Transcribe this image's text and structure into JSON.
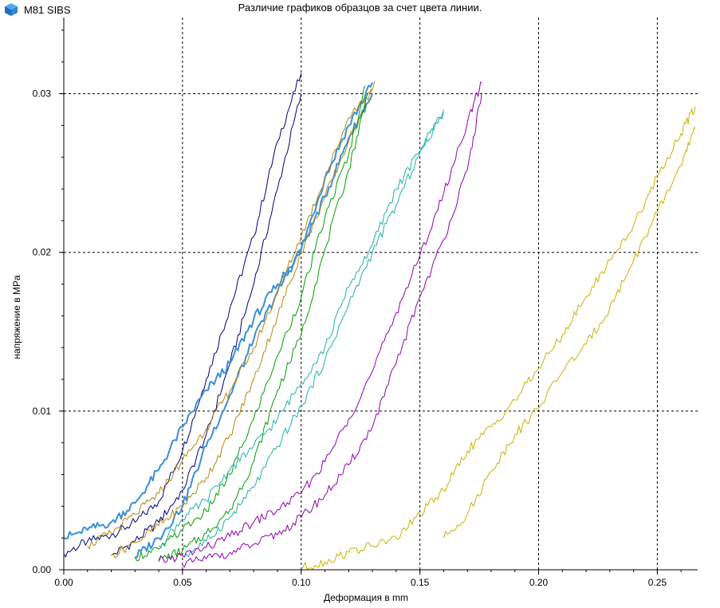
{
  "app": {
    "name": "M81 SIBS",
    "icon": "blue-cube-icon"
  },
  "chart_data": {
    "type": "line",
    "title": "Различие графиков образцов за счет цвета линии.",
    "xlabel": "Деформация в mm",
    "ylabel": "напряжение в MPa",
    "xlim": [
      0,
      0.267
    ],
    "ylim": [
      0,
      0.0348
    ],
    "x_ticks": [
      0,
      0.05,
      0.1,
      0.15,
      0.2,
      0.25
    ],
    "x_tick_labels": [
      "0.00",
      "0.05",
      "0.10",
      "0.15",
      "0.20",
      "0.25"
    ],
    "y_ticks": [
      0,
      0.01,
      0.02,
      0.03
    ],
    "y_tick_labels": [
      "0.00",
      "0.01",
      "0.02",
      "0.03"
    ],
    "grid": "dashed",
    "series": [
      {
        "color": "#000080",
        "width": 1,
        "x": [
          0,
          0.01,
          0.02,
          0.03,
          0.04,
          0.05,
          0.06,
          0.07,
          0.08,
          0.09,
          0.1
        ],
        "y": [
          0.001,
          0.0018,
          0.0022,
          0.003,
          0.0043,
          0.0075,
          0.012,
          0.0165,
          0.021,
          0.027,
          0.0313
        ]
      },
      {
        "color": "#000080",
        "width": 1,
        "x": [
          0.02,
          0.03,
          0.04,
          0.05,
          0.06,
          0.07,
          0.08,
          0.09,
          0.1
        ],
        "y": [
          0.0009,
          0.0018,
          0.003,
          0.005,
          0.0085,
          0.013,
          0.018,
          0.024,
          0.03
        ]
      },
      {
        "color": "#3a8fd8",
        "width": 2,
        "x": [
          0,
          0.01,
          0.02,
          0.03,
          0.04,
          0.05,
          0.06,
          0.07,
          0.08,
          0.09,
          0.1,
          0.11,
          0.12,
          0.13
        ],
        "y": [
          0.002,
          0.0025,
          0.003,
          0.0042,
          0.0063,
          0.009,
          0.0113,
          0.013,
          0.0158,
          0.018,
          0.0202,
          0.0247,
          0.028,
          0.0307
        ]
      },
      {
        "color": "#3a8fd8",
        "width": 2,
        "x": [
          0.03,
          0.04,
          0.05,
          0.06,
          0.07,
          0.08,
          0.09,
          0.1,
          0.11,
          0.12,
          0.13
        ],
        "y": [
          0.0008,
          0.002,
          0.004,
          0.0078,
          0.011,
          0.0145,
          0.0175,
          0.0202,
          0.0235,
          0.0272,
          0.03
        ]
      },
      {
        "color": "#b8860b",
        "width": 1,
        "x": [
          0.02,
          0.03,
          0.04,
          0.05,
          0.06,
          0.07,
          0.08,
          0.09,
          0.1,
          0.11,
          0.12,
          0.131
        ],
        "y": [
          0.0009,
          0.0017,
          0.0028,
          0.004,
          0.0058,
          0.0085,
          0.012,
          0.016,
          0.02,
          0.0235,
          0.027,
          0.0308
        ]
      },
      {
        "color": "#b8860b",
        "width": 1,
        "x": [
          0.01,
          0.02,
          0.03,
          0.04,
          0.05,
          0.06,
          0.07,
          0.08,
          0.09,
          0.1,
          0.11,
          0.12,
          0.13
        ],
        "y": [
          0.0015,
          0.0023,
          0.0035,
          0.0048,
          0.0069,
          0.0089,
          0.0113,
          0.014,
          0.0175,
          0.021,
          0.0247,
          0.0285,
          0.0303
        ]
      },
      {
        "color": "#00a000",
        "width": 1,
        "x": [
          0.03,
          0.04,
          0.05,
          0.06,
          0.07,
          0.08,
          0.09,
          0.1,
          0.11,
          0.12,
          0.127
        ],
        "y": [
          0.0008,
          0.0013,
          0.0025,
          0.0037,
          0.006,
          0.0095,
          0.0135,
          0.0172,
          0.0222,
          0.0262,
          0.0305
        ]
      },
      {
        "color": "#00a000",
        "width": 1,
        "x": [
          0.04,
          0.05,
          0.06,
          0.07,
          0.08,
          0.09,
          0.1,
          0.11,
          0.12,
          0.128
        ],
        "y": [
          0.0006,
          0.0012,
          0.0023,
          0.0038,
          0.0068,
          0.0113,
          0.0148,
          0.0202,
          0.0252,
          0.03
        ]
      },
      {
        "color": "#20b2aa",
        "width": 1,
        "x": [
          0.04,
          0.05,
          0.06,
          0.07,
          0.08,
          0.09,
          0.1,
          0.11,
          0.12,
          0.13,
          0.14,
          0.15,
          0.16
        ],
        "y": [
          0.0015,
          0.0032,
          0.0044,
          0.0063,
          0.0078,
          0.0095,
          0.0118,
          0.014,
          0.0178,
          0.0205,
          0.024,
          0.0264,
          0.029
        ]
      },
      {
        "color": "#20b2aa",
        "width": 1,
        "x": [
          0.05,
          0.06,
          0.07,
          0.08,
          0.09,
          0.1,
          0.11,
          0.12,
          0.13,
          0.14,
          0.15,
          0.16
        ],
        "y": [
          0.0008,
          0.0018,
          0.0033,
          0.0052,
          0.0078,
          0.0103,
          0.0132,
          0.0167,
          0.02,
          0.023,
          0.0263,
          0.0288
        ]
      },
      {
        "color": "#9400b0",
        "width": 1,
        "x": [
          0.04,
          0.05,
          0.06,
          0.07,
          0.08,
          0.09,
          0.1,
          0.11,
          0.12,
          0.13,
          0.14,
          0.15,
          0.16,
          0.17,
          0.176
        ],
        "y": [
          0.0005,
          0.0009,
          0.0014,
          0.0021,
          0.003,
          0.0038,
          0.0048,
          0.0068,
          0.0095,
          0.0125,
          0.0162,
          0.0198,
          0.0237,
          0.0282,
          0.0307
        ]
      },
      {
        "color": "#9400b0",
        "width": 1,
        "x": [
          0.05,
          0.06,
          0.07,
          0.08,
          0.09,
          0.1,
          0.11,
          0.12,
          0.13,
          0.14,
          0.15,
          0.16,
          0.17,
          0.176
        ],
        "y": [
          0.0003,
          0.0007,
          0.0011,
          0.0016,
          0.0022,
          0.0033,
          0.0047,
          0.0066,
          0.009,
          0.013,
          0.0172,
          0.0208,
          0.0252,
          0.03
        ]
      },
      {
        "color": "#c8b400",
        "width": 1,
        "x": [
          0.1,
          0.11,
          0.12,
          0.13,
          0.14,
          0.15,
          0.16,
          0.17,
          0.18,
          0.19,
          0.2,
          0.21,
          0.22,
          0.23,
          0.24,
          0.25,
          0.26,
          0.266
        ],
        "y": [
          0.0001,
          0.0005,
          0.0011,
          0.0015,
          0.002,
          0.0035,
          0.005,
          0.0075,
          0.009,
          0.0107,
          0.0127,
          0.0148,
          0.0172,
          0.0195,
          0.0217,
          0.0248,
          0.0275,
          0.0292
        ]
      },
      {
        "color": "#c8b400",
        "width": 1,
        "x": [
          0.16,
          0.17,
          0.18,
          0.19,
          0.2,
          0.21,
          0.22,
          0.23,
          0.24,
          0.25,
          0.26,
          0.266
        ],
        "y": [
          0.002,
          0.0035,
          0.0062,
          0.0085,
          0.0102,
          0.0125,
          0.0142,
          0.0165,
          0.0195,
          0.0225,
          0.0255,
          0.0278
        ]
      }
    ]
  }
}
